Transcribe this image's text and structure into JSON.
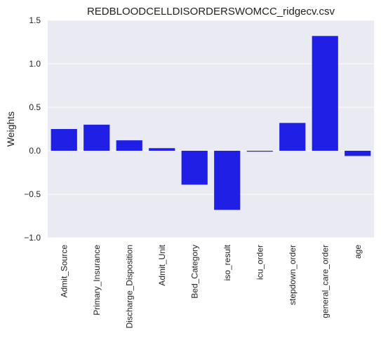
{
  "chart_data": {
    "type": "bar",
    "title": "REDBLOODCELLDISORDERSWOMCC_ridgecv.csv",
    "xlabel": "",
    "ylabel": "Weights",
    "categories": [
      "Admit_Source",
      "Primary_Insurance",
      "Discharge_Disposition",
      "Admit_Unit",
      "Bed_Category",
      "iso_result",
      "icu_order",
      "stepdown_order",
      "general_care_order",
      "age"
    ],
    "values": [
      0.25,
      0.3,
      0.12,
      0.03,
      -0.39,
      -0.68,
      -0.01,
      0.32,
      1.32,
      -0.06
    ],
    "ylim": [
      -1.0,
      1.5
    ],
    "yticks": [
      -1.0,
      -0.5,
      0.0,
      0.5,
      1.0,
      1.5
    ],
    "ytick_labels": [
      "−1.0",
      "−0.5",
      "0.0",
      "0.5",
      "1.0",
      "1.5"
    ],
    "grid": true,
    "legend": "none",
    "colors": {
      "bar": "#1f1fe6",
      "plot_background": "#eaeaf2",
      "grid": "#ffffff"
    }
  }
}
